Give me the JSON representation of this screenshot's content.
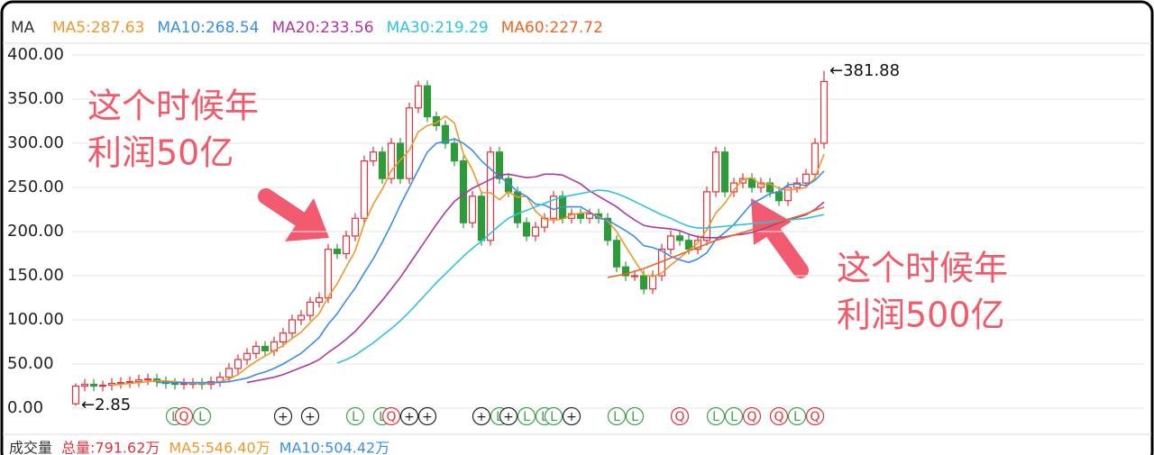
{
  "chart_data": {
    "type": "candlestick",
    "legend_title": "MA",
    "ylim": [
      0,
      400
    ],
    "yticks": [
      {
        "value": 0,
        "label": "0.00"
      },
      {
        "value": 50,
        "label": "50.00"
      },
      {
        "value": 100,
        "label": "100.00"
      },
      {
        "value": 150,
        "label": "150.00"
      },
      {
        "value": 200,
        "label": "200.00"
      },
      {
        "value": 250,
        "label": "250.00"
      },
      {
        "value": 300,
        "label": "300.00"
      },
      {
        "value": 350,
        "label": "350.00"
      },
      {
        "value": 400,
        "label": "400.00"
      }
    ],
    "grid": true,
    "up_color": "#e2323c",
    "down_color": "#2f9a3a",
    "open": [
      5,
      25,
      27,
      25,
      26,
      28,
      29,
      30,
      32,
      33,
      30,
      28,
      27,
      28,
      28,
      27,
      30,
      35,
      45,
      55,
      62,
      70,
      65,
      75,
      85,
      100,
      105,
      120,
      125,
      180,
      175,
      195,
      215,
      280,
      290,
      260,
      300,
      260,
      340,
      365,
      330,
      320,
      300,
      280,
      210,
      240,
      190,
      290,
      260,
      245,
      210,
      195,
      205,
      215,
      240,
      215,
      220,
      215,
      220,
      215,
      190,
      160,
      150,
      150,
      135,
      150,
      180,
      195,
      190,
      180,
      190,
      245,
      290,
      245,
      255,
      260,
      250,
      255,
      245,
      235,
      250,
      255,
      265,
      300
    ],
    "close": [
      25,
      27,
      25,
      26,
      28,
      29,
      30,
      32,
      33,
      30,
      28,
      27,
      28,
      28,
      27,
      30,
      35,
      45,
      55,
      62,
      70,
      65,
      75,
      85,
      100,
      105,
      120,
      125,
      180,
      175,
      195,
      215,
      280,
      290,
      260,
      300,
      260,
      340,
      365,
      330,
      320,
      300,
      280,
      210,
      240,
      190,
      290,
      260,
      245,
      210,
      195,
      205,
      215,
      240,
      215,
      220,
      215,
      220,
      215,
      190,
      160,
      150,
      150,
      135,
      150,
      180,
      195,
      190,
      180,
      190,
      245,
      290,
      245,
      255,
      260,
      250,
      255,
      245,
      235,
      250,
      255,
      265,
      300,
      370
    ],
    "high": [
      28,
      33,
      33,
      31,
      34,
      35,
      36,
      38,
      39,
      39,
      36,
      34,
      34,
      34,
      34,
      36,
      41,
      51,
      61,
      68,
      76,
      76,
      81,
      91,
      106,
      111,
      126,
      131,
      186,
      186,
      201,
      221,
      286,
      296,
      296,
      306,
      306,
      346,
      371,
      371,
      336,
      326,
      306,
      286,
      246,
      246,
      296,
      296,
      266,
      251,
      216,
      211,
      221,
      246,
      246,
      226,
      226,
      226,
      226,
      221,
      196,
      166,
      156,
      156,
      156,
      186,
      201,
      201,
      196,
      196,
      251,
      296,
      296,
      261,
      266,
      266,
      261,
      261,
      251,
      256,
      261,
      271,
      306,
      381.88
    ],
    "low": [
      2.85,
      19,
      19,
      19,
      20,
      22,
      23,
      24,
      26,
      24,
      22,
      21,
      21,
      22,
      21,
      21,
      24,
      29,
      39,
      49,
      56,
      59,
      59,
      69,
      79,
      94,
      99,
      114,
      119,
      169,
      169,
      189,
      209,
      274,
      254,
      254,
      254,
      254,
      334,
      324,
      314,
      294,
      274,
      204,
      204,
      184,
      184,
      254,
      239,
      204,
      189,
      189,
      199,
      209,
      209,
      209,
      209,
      209,
      209,
      184,
      154,
      144,
      144,
      129,
      129,
      144,
      174,
      184,
      174,
      174,
      184,
      239,
      239,
      239,
      249,
      244,
      244,
      239,
      229,
      229,
      244,
      249,
      259,
      294
    ],
    "series": [
      {
        "name": "MA5:287.63",
        "color": "#f0982a",
        "values": [
          null,
          null,
          null,
          null,
          26,
          27,
          28,
          29,
          30,
          31,
          31,
          30,
          29,
          28,
          28,
          28,
          30,
          33,
          38,
          46,
          53,
          59,
          65,
          71,
          79,
          86,
          97,
          107,
          126,
          141,
          160,
          178,
          209,
          231,
          248,
          269,
          281,
          292,
          313,
          320,
          323,
          331,
          323,
          288,
          270,
          244,
          244,
          236,
          245,
          239,
          240,
          223,
          214,
          213,
          214,
          219,
          221,
          222,
          217,
          212,
          200,
          183,
          167,
          151,
          149,
          153,
          162,
          170,
          179,
          187,
          202,
          221,
          232,
          247,
          259,
          261,
          253,
          254,
          249,
          247,
          248,
          250,
          261,
          287.63
        ]
      },
      {
        "name": "MA10:268.54",
        "color": "#3a8ee6",
        "values": [
          null,
          null,
          null,
          null,
          null,
          null,
          null,
          null,
          null,
          29,
          29,
          29,
          29,
          29,
          29,
          29,
          29,
          30,
          32,
          34,
          38,
          41,
          45,
          50,
          56,
          62,
          71,
          80,
          95,
          107,
          122,
          136,
          153,
          169,
          188,
          208,
          230,
          250,
          270,
          290,
          300,
          302,
          305,
          300,
          292,
          280,
          271,
          262,
          255,
          245,
          240,
          231,
          230,
          225,
          228,
          228,
          228,
          222,
          215,
          213,
          207,
          201,
          194,
          184,
          182,
          178,
          172,
          168,
          165,
          169,
          176,
          191,
          199,
          208,
          220,
          232,
          237,
          243,
          245,
          253,
          254,
          252,
          258,
          268.54
        ]
      },
      {
        "name": "MA20:233.56",
        "color": "#b0359f",
        "values": [
          null,
          null,
          null,
          null,
          null,
          null,
          null,
          null,
          null,
          null,
          null,
          null,
          null,
          null,
          null,
          null,
          null,
          null,
          null,
          29,
          31,
          33,
          35,
          38,
          42,
          46,
          50,
          55,
          63,
          70,
          78,
          87,
          98,
          110,
          122,
          135,
          148,
          163,
          178,
          193,
          208,
          222,
          234,
          242,
          249,
          254,
          259,
          264,
          265,
          263,
          261,
          262,
          265,
          265,
          264,
          259,
          254,
          246,
          240,
          234,
          228,
          220,
          213,
          207,
          205,
          204,
          203,
          201,
          197,
          194,
          193,
          193,
          194,
          196,
          197,
          199,
          202,
          206,
          210,
          213,
          216,
          219,
          225,
          233.56
        ]
      },
      {
        "name": "MA30:219.29",
        "color": "#2ec3e0",
        "values": [
          null,
          null,
          null,
          null,
          null,
          null,
          null,
          null,
          null,
          null,
          null,
          null,
          null,
          null,
          null,
          null,
          null,
          null,
          null,
          null,
          null,
          null,
          null,
          null,
          null,
          null,
          null,
          null,
          null,
          51,
          55,
          60,
          67,
          74,
          82,
          90,
          99,
          109,
          120,
          131,
          142,
          152,
          162,
          172,
          181,
          189,
          198,
          207,
          215,
          220,
          224,
          228,
          232,
          236,
          239,
          241,
          243,
          245,
          247,
          246,
          243,
          239,
          234,
          229,
          224,
          219,
          215,
          210,
          206,
          204,
          204,
          205,
          206,
          207,
          208,
          209,
          210,
          211,
          212,
          213,
          214,
          215,
          217,
          219.29
        ]
      },
      {
        "name": "MA60:227.72",
        "color": "#f06422",
        "values": [
          null,
          null,
          null,
          null,
          null,
          null,
          null,
          null,
          null,
          null,
          null,
          null,
          null,
          null,
          null,
          null,
          null,
          null,
          null,
          null,
          null,
          null,
          null,
          null,
          null,
          null,
          null,
          null,
          null,
          null,
          null,
          null,
          null,
          null,
          null,
          null,
          null,
          null,
          null,
          null,
          null,
          null,
          null,
          null,
          null,
          null,
          null,
          null,
          null,
          null,
          null,
          null,
          null,
          null,
          null,
          null,
          null,
          null,
          null,
          148,
          150,
          152,
          155,
          158,
          162,
          166,
          170,
          174,
          178,
          182,
          186,
          190,
          193,
          196,
          199,
          202,
          205,
          208,
          211,
          214,
          217,
          220,
          224,
          227.72
        ]
      }
    ],
    "max_label": "←381.88",
    "min_label": "←2.85",
    "events": [
      null,
      null,
      null,
      null,
      null,
      null,
      null,
      null,
      null,
      null,
      null,
      "L",
      "Q",
      null,
      "L",
      null,
      null,
      null,
      null,
      null,
      null,
      null,
      null,
      "+",
      null,
      null,
      "+",
      null,
      null,
      null,
      null,
      "L",
      null,
      null,
      "L",
      "Q",
      null,
      "+",
      null,
      "+",
      null,
      null,
      null,
      null,
      null,
      "+",
      null,
      "L",
      "+",
      null,
      "L",
      null,
      "L",
      "L",
      null,
      "+",
      null,
      null,
      null,
      null,
      "L",
      null,
      "L",
      null,
      null,
      null,
      null,
      "Q",
      null,
      null,
      null,
      "L",
      null,
      "L",
      null,
      "Q",
      null,
      null,
      "Q",
      null,
      "L",
      null,
      "Q",
      null
    ],
    "annotations": [
      {
        "lines": [
          "这个时候年",
          "利润50亿"
        ]
      },
      {
        "lines": [
          "这个时候年",
          "利润500亿"
        ]
      }
    ],
    "volume_header": [
      "成交量",
      "总量:791.62万",
      "MA5:546.40万",
      "MA10:504.42万"
    ]
  }
}
